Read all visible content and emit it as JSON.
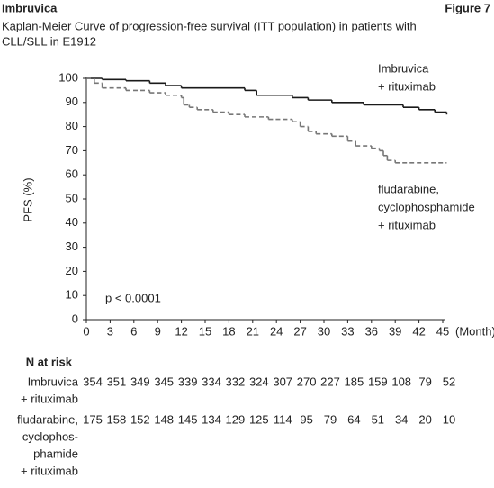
{
  "header": {
    "product": "Imbruvica",
    "figure": "Figure 7"
  },
  "chart_data": {
    "type": "km",
    "title": "Kaplan-Meier Curve of progression-free survival (ITT population) in patients with",
    "title_line2": "CLL/SLL in E1912",
    "y_label": "PFS (%)",
    "x_label": "(Month)",
    "xlim": [
      0,
      45
    ],
    "ylim": [
      0,
      100
    ],
    "xticks": [
      0,
      3,
      6,
      9,
      12,
      15,
      18,
      21,
      24,
      27,
      30,
      33,
      36,
      39,
      42,
      45
    ],
    "yticks": [
      0,
      10,
      20,
      30,
      40,
      50,
      60,
      70,
      80,
      90,
      100
    ],
    "annotations": {
      "series1_line1": "Imbruvica",
      "series1_line2": "+ rituximab",
      "series2_line1": "fludarabine,",
      "series2_line2": "cyclophosphamide",
      "series2_line3": "+ rituximab",
      "p": "p < 0.0001"
    },
    "series": [
      {
        "name": "Imbruvica + rituximab",
        "color": "#1a1a1a",
        "dash": false,
        "x": [
          0,
          2,
          5,
          8,
          10,
          12,
          20,
          21.5,
          26,
          28,
          31,
          35,
          40,
          42,
          44,
          45.5
        ],
        "values": [
          100,
          99.5,
          99,
          98,
          97,
          96,
          95,
          93,
          92,
          91,
          90,
          89,
          88,
          87,
          86,
          85
        ]
      },
      {
        "name": "fludarabine, cyclophosphamide + rituximab",
        "color": "#777777",
        "dash": true,
        "x": [
          0,
          1,
          2,
          5,
          8,
          10,
          12,
          12.3,
          13,
          14,
          16,
          18,
          20,
          23,
          26,
          27,
          28,
          29,
          31,
          33,
          34,
          36,
          37,
          37.5,
          38,
          39,
          45.5
        ],
        "values": [
          100,
          98,
          96,
          95,
          94,
          93,
          92,
          89,
          88,
          87,
          86,
          85,
          84,
          83,
          82,
          80,
          78,
          77,
          76,
          74,
          72,
          71,
          70,
          68,
          66,
          65,
          65
        ]
      }
    ]
  },
  "risk_table": {
    "title": "N at risk",
    "rows": [
      {
        "label_lines": [
          "Imbruvica",
          "+ rituximab"
        ],
        "values": [
          354,
          351,
          349,
          345,
          339,
          334,
          332,
          324,
          307,
          270,
          227,
          185,
          159,
          108,
          79,
          52
        ]
      },
      {
        "label_lines": [
          "fludarabine,",
          "cyclophos-",
          "phamide",
          "+ rituximab"
        ],
        "values": [
          175,
          158,
          152,
          148,
          145,
          134,
          129,
          125,
          114,
          95,
          79,
          64,
          51,
          34,
          20,
          10
        ]
      }
    ]
  }
}
